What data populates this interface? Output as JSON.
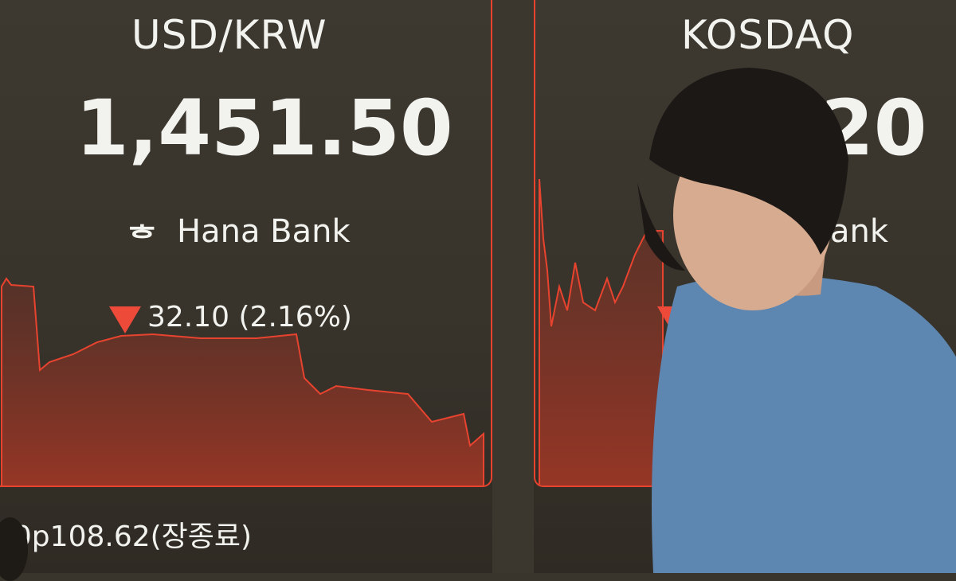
{
  "usd_krw": {
    "title": "USD/KRW",
    "value": "1,451.50",
    "bank": "Hana Bank",
    "change": "32.10 (2.16%)",
    "direction": "down"
  },
  "kosdaq": {
    "title": "KOSDAQ",
    "value_visible": "20",
    "bank_visible": "ank",
    "change_visible": "%)",
    "direction": "down"
  },
  "ticker": {
    "text": "70p108.62(장종료)"
  },
  "colors": {
    "line": "#e8432f",
    "down": "#ee4a3a",
    "background": "#3a352c",
    "shirt": "#5d86b0"
  }
}
